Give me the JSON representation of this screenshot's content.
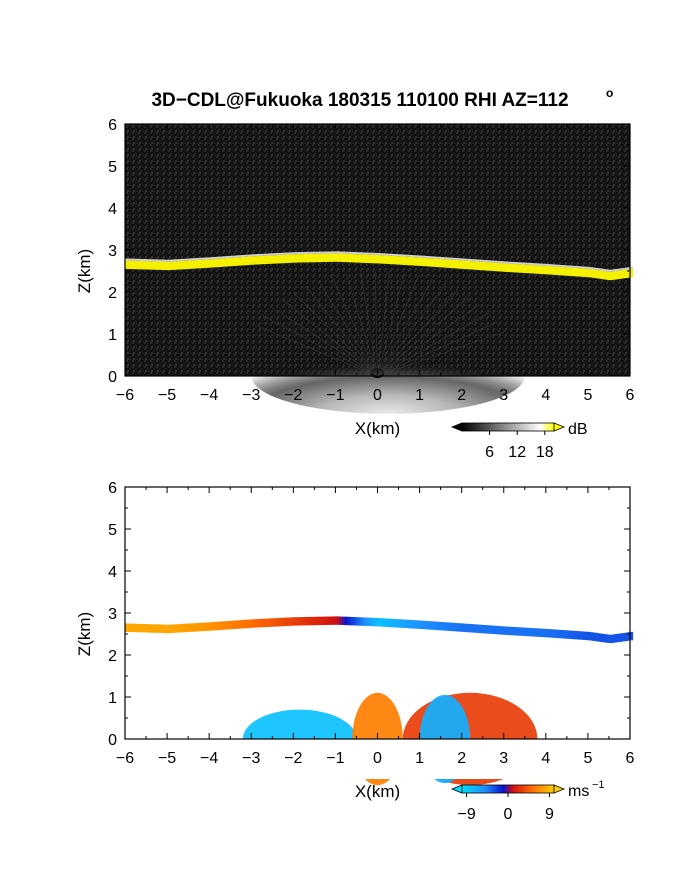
{
  "title": "3D−CDL@Fukuoka 180315 110100 RHI AZ=112",
  "title_degree": "o",
  "chart_data": [
    {
      "type": "heatmap",
      "name": "reflectivity",
      "xlabel": "X(km)",
      "ylabel": "Z(km)",
      "xlim": [
        -6,
        6
      ],
      "ylim": [
        0,
        6
      ],
      "x_ticks": [
        "−6",
        "−5",
        "−4",
        "−3",
        "−2",
        "−1",
        "0",
        "1",
        "2",
        "3",
        "4",
        "5",
        "6"
      ],
      "y_ticks": [
        "0",
        "1",
        "2",
        "3",
        "4",
        "5",
        "6"
      ],
      "background_color": "#111111",
      "layer": {
        "x": [
          -6,
          -5,
          -4,
          -3,
          -2,
          -1,
          0,
          1,
          2,
          3,
          4,
          5,
          5.5,
          6
        ],
        "z_center": [
          2.65,
          2.62,
          2.68,
          2.75,
          2.8,
          2.82,
          2.78,
          2.72,
          2.65,
          2.58,
          2.52,
          2.45,
          2.38,
          2.45
        ],
        "thickness_km": 0.2,
        "color": "#f5f000"
      },
      "near_ground_echo": {
        "x_range": [
          -3,
          3.5
        ],
        "top_km": 0.9
      },
      "colorbar": {
        "unit": "dB",
        "ticks": [
          "6",
          "12",
          "18"
        ],
        "range": [
          0,
          20
        ],
        "colors": [
          "#000000",
          "#ffffff",
          "#ffff00"
        ]
      }
    },
    {
      "type": "heatmap",
      "name": "doppler_velocity",
      "xlabel": "X(km)",
      "ylabel": "Z(km)",
      "xlim": [
        -6,
        6
      ],
      "ylim": [
        0,
        6
      ],
      "x_ticks": [
        "−6",
        "−5",
        "−4",
        "−3",
        "−2",
        "−1",
        "0",
        "1",
        "2",
        "3",
        "4",
        "5",
        "6"
      ],
      "y_ticks": [
        "0",
        "1",
        "2",
        "3",
        "4",
        "5",
        "6"
      ],
      "background_color": "#ffffff",
      "layer": {
        "x": [
          -6,
          -5,
          -4,
          -3,
          -2,
          -1,
          0,
          1,
          2,
          3,
          4,
          5,
          5.5,
          6
        ],
        "z_center": [
          2.65,
          2.62,
          2.68,
          2.75,
          2.8,
          2.82,
          2.78,
          2.72,
          2.65,
          2.58,
          2.52,
          2.45,
          2.38,
          2.45
        ],
        "velocity_ms": [
          8,
          8,
          7,
          5,
          3,
          1,
          -8,
          -5,
          -4,
          -4,
          -4,
          -3,
          -3,
          -3
        ],
        "thickness_km": 0.2
      },
      "near_ground_echo": [
        {
          "x_range": [
            -3.2,
            -0.5
          ],
          "velocity_ms": -8,
          "top_km": 0.7
        },
        {
          "x_range": [
            -0.6,
            0.6
          ],
          "velocity_ms": 6,
          "top_km": 1.1
        },
        {
          "x_range": [
            0.6,
            3.8
          ],
          "velocity_ms": 3,
          "top_km": 1.1
        },
        {
          "x_range": [
            1.0,
            2.2
          ],
          "velocity_ms": -7,
          "top_km": 1.05
        }
      ],
      "colorbar": {
        "unit": "ms",
        "unit_exponent": "−1",
        "ticks": [
          "−9",
          "0",
          "9"
        ],
        "range": [
          -10,
          10
        ],
        "colors": [
          "#00d0ff",
          "#1e90ff",
          "#0a14d0",
          "#d01010",
          "#ff6a00",
          "#ffd000"
        ]
      }
    }
  ]
}
